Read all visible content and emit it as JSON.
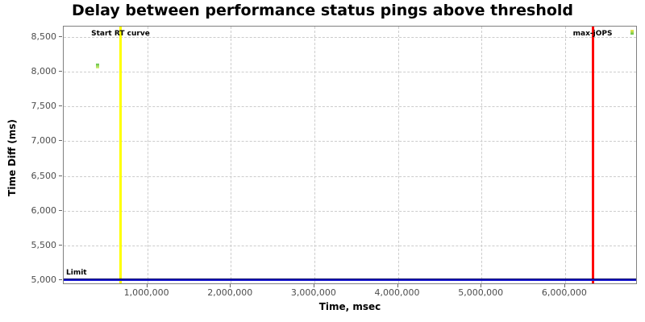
{
  "chart_data": {
    "type": "scatter",
    "title": "Delay between performance status pings above threshold",
    "xlabel": "Time, msec",
    "ylabel": "Time Diff (ms)",
    "xlim": [
      0,
      6870000
    ],
    "ylim": [
      4935,
      8645
    ],
    "x_ticks": [
      1000000,
      2000000,
      3000000,
      4000000,
      5000000,
      6000000
    ],
    "y_ticks": [
      5000,
      5500,
      6000,
      6500,
      7000,
      7500,
      8000,
      8500
    ],
    "grid": true,
    "legend": "none",
    "points": [
      {
        "x": 410000,
        "y": 8080,
        "colors": [
          "#5fc24d",
          "#ddf07a"
        ]
      },
      {
        "x": 6800000,
        "y": 8560,
        "colors": [
          "#f4ea4f",
          "#5fc24d"
        ]
      }
    ],
    "markers": {
      "vertical": [
        {
          "label": "Start RT curve",
          "x": 680000,
          "color": "#ffff00"
        },
        {
          "label": "max-jOPS",
          "x": 6330000,
          "color": "#ff0000"
        }
      ],
      "horizontal": [
        {
          "label": "Limit",
          "y": 5000,
          "color": "#1a1acc"
        }
      ]
    },
    "colors": {
      "grid": "#cccccc",
      "plot_border": "#808080",
      "tick_label": "#4d4d4d",
      "marker_label": "#000000",
      "background": "#ffffff"
    }
  }
}
